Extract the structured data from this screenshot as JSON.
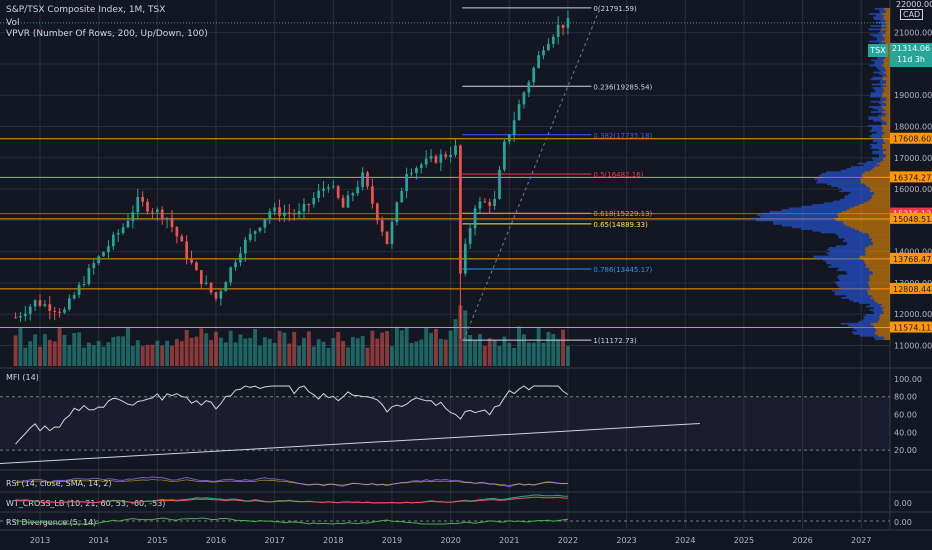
{
  "header": {
    "title": "S&P/TSX Composite Index, 1M, TSX",
    "vol": "Vol",
    "vpvr": "VPVR (Number Of Rows, 200, Up/Down, 100)"
  },
  "axis": {
    "top_price": "22000.00",
    "currency": "CAD",
    "price_ticks": [
      "21000.00",
      "20000.00",
      "19000.00",
      "18000.00",
      "17000.00",
      "16000.00",
      "15000.00",
      "14000.00",
      "13000.00",
      "12000.00",
      "11000.00"
    ],
    "years": [
      "2013",
      "2014",
      "2015",
      "2016",
      "2017",
      "2018",
      "2019",
      "2020",
      "2021",
      "2022",
      "2023",
      "2024",
      "2025",
      "2026",
      "2027"
    ]
  },
  "last_price": {
    "symbol": "TSX",
    "value": "21314.06",
    "countdown": "11d 3h"
  },
  "fib_levels": [
    {
      "label": "0(21791.59)",
      "price": 21792,
      "color": "#d1d4dc"
    },
    {
      "label": "0.236(19285.54)",
      "price": 19286,
      "color": "#d1d4dc"
    },
    {
      "label": "0.382(17735.18)",
      "price": 17735,
      "color": "#2962ff"
    },
    {
      "label": "0.5(16482.16)",
      "price": 16482,
      "color": "#f23645"
    },
    {
      "label": "0.618(15229.13)",
      "price": 15229,
      "color": "#ff9800"
    },
    {
      "label": "0.65(14889.33)",
      "price": 14889,
      "color": "#ffeb3b"
    },
    {
      "label": "0.786(13445.17)",
      "price": 13445,
      "color": "#2196f3"
    },
    {
      "label": "1(11172.73)",
      "price": 11173,
      "color": "#d1d4dc"
    }
  ],
  "support_levels": [
    {
      "label": "17608.60",
      "price": 17609,
      "color": "#ff9800"
    },
    {
      "label": "16374.27",
      "price": 16374,
      "color": "#ff9800"
    },
    {
      "label": "15216.12",
      "price": 15216,
      "color": "#f23645"
    },
    {
      "label": "15048.51",
      "price": 15049,
      "color": "#ff9800"
    },
    {
      "label": "13768.47",
      "price": 13768,
      "color": "#ff9800"
    },
    {
      "label": "12808.44",
      "price": 12808,
      "color": "#ff9800"
    },
    {
      "label": "11574.11",
      "price": 11574,
      "color": "#ff9800"
    }
  ],
  "mfi": {
    "title": "MFI (14)",
    "ticks": [
      "100.00",
      "80.00",
      "60.00",
      "40.00",
      "20.00"
    ]
  },
  "rsi": {
    "title": "RSI (14, close, SMA, 14, 2)"
  },
  "wt": {
    "title": "WT_CROSS_LB (10, 21, 60, 53, -60, -53)",
    "tick": "0.00"
  },
  "rsi_div": {
    "title": "RSI Divergence (5, 14)",
    "tick": "0.00"
  },
  "colors": {
    "up": "#26a69a",
    "down": "#ef5350",
    "bg": "#131722",
    "grid": "#2a2e39"
  },
  "chart_data": {
    "type": "candlestick",
    "title": "S&P/TSX Composite Index, 1M, TSX",
    "x_range": [
      "2012-08",
      "2027-06"
    ],
    "ylim": [
      10600,
      22300
    ],
    "ohlc_anchor_closes": [
      [
        "2012-08",
        11900
      ],
      [
        "2012-12",
        12400
      ],
      [
        "2013-06",
        12100
      ],
      [
        "2013-12",
        13600
      ],
      [
        "2014-06",
        14800
      ],
      [
        "2014-09",
        15600
      ],
      [
        "2015-03",
        15100
      ],
      [
        "2015-09",
        13300
      ],
      [
        "2016-01",
        12500
      ],
      [
        "2016-06",
        14100
      ],
      [
        "2016-12",
        15300
      ],
      [
        "2017-06",
        15200
      ],
      [
        "2017-12",
        16200
      ],
      [
        "2018-03",
        15400
      ],
      [
        "2018-07",
        16400
      ],
      [
        "2018-12",
        14300
      ],
      [
        "2019-04",
        16600
      ],
      [
        "2019-12",
        17100
      ],
      [
        "2020-02",
        17300
      ],
      [
        "2020-03",
        13400
      ],
      [
        "2020-06",
        15500
      ],
      [
        "2020-10",
        15600
      ],
      [
        "2020-12",
        17400
      ],
      [
        "2021-04",
        19100
      ],
      [
        "2021-08",
        20600
      ],
      [
        "2021-11",
        21200
      ],
      [
        "2022-01",
        21314
      ]
    ],
    "last_close": 21314.06,
    "mfi": {
      "ylim": [
        0,
        110
      ],
      "last": 72,
      "levels": [
        80,
        20
      ]
    }
  }
}
